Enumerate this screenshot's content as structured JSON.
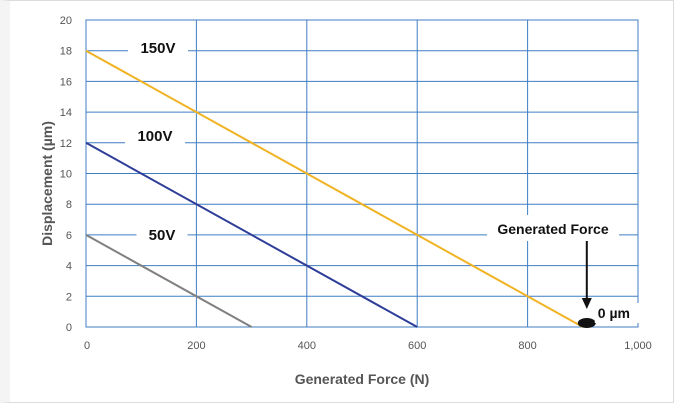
{
  "chart_data": {
    "type": "line",
    "title": "",
    "xlabel": "Generated Force (N)",
    "ylabel": "Displacement (µm)",
    "xlim": [
      0,
      1000
    ],
    "ylim": [
      0,
      20
    ],
    "x_ticks": [
      0,
      200,
      400,
      600,
      800,
      1000
    ],
    "x_tick_labels": [
      "0",
      "200",
      "400",
      "600",
      "800",
      "1,000"
    ],
    "y_ticks": [
      0,
      2,
      4,
      6,
      8,
      10,
      12,
      14,
      16,
      18,
      20
    ],
    "y_tick_labels": [
      "0",
      "2",
      "4",
      "6",
      "8",
      "10",
      "12",
      "14",
      "16",
      "18",
      "20"
    ],
    "grid": true,
    "series": [
      {
        "name": "150V",
        "color": "#f0b323",
        "points": [
          [
            0,
            18
          ],
          [
            900,
            0
          ]
        ]
      },
      {
        "name": "100V",
        "color": "#2e3d98",
        "points": [
          [
            0,
            12
          ],
          [
            600,
            0
          ]
        ]
      },
      {
        "name": "50V",
        "color": "#808080",
        "points": [
          [
            0,
            6
          ],
          [
            300,
            0
          ]
        ]
      }
    ],
    "annotations": [
      {
        "text": "Generated Force",
        "target": [
          900,
          0
        ]
      },
      {
        "text": "0 µm",
        "target": [
          900,
          0
        ]
      }
    ],
    "colors": {
      "grid": "#3f7ec3",
      "axis_text": "#555555"
    }
  }
}
